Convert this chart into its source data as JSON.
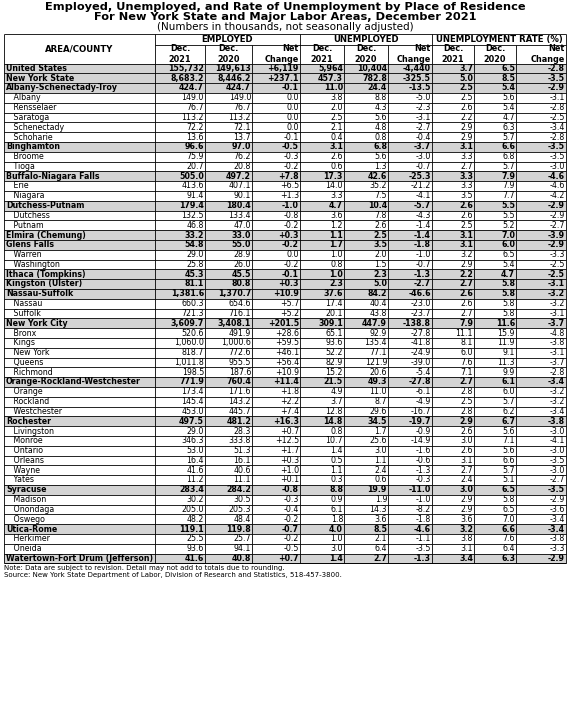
{
  "title_line1": "Employed, Unemployed, and Rate of Unemployment by Place of Residence",
  "title_line2": "For New York State and Major Labor Areas, December 2021",
  "title_line3": "(Numbers in thousands, not seasonally adjusted)",
  "note_line1": "Note: Data are subject to revision. Detail may not add to totals due to rounding.",
  "note_line2": "Source: New York State Department of Labor, Division of Research and Statistics, 518-457-3800.",
  "rows": [
    [
      "United States",
      "155,732",
      "149,613",
      "+6,119",
      "5,964",
      "10,404",
      "-4,440",
      "3.7",
      "6.5",
      "-2.8"
    ],
    [
      "New York State",
      "8,683.2",
      "8,446.2",
      "+237.1",
      "457.3",
      "782.8",
      "-325.5",
      "5.0",
      "8.5",
      "-3.5"
    ],
    [
      "Albany-Schenectady-Troy",
      "424.7",
      "424.7",
      "-0.1",
      "11.0",
      "24.4",
      "-13.5",
      "2.5",
      "5.4",
      "-2.9"
    ],
    [
      "   Albany",
      "149.0",
      "149.0",
      "0.0",
      "3.8",
      "8.8",
      "-5.0",
      "2.5",
      "5.6",
      "-3.1"
    ],
    [
      "   Rensselaer",
      "76.7",
      "76.7",
      "0.0",
      "2.0",
      "4.3",
      "-2.3",
      "2.6",
      "5.4",
      "-2.8"
    ],
    [
      "   Saratoga",
      "113.2",
      "113.2",
      "0.0",
      "2.5",
      "5.6",
      "-3.1",
      "2.2",
      "4.7",
      "-2.5"
    ],
    [
      "   Schenectady",
      "72.2",
      "72.1",
      "0.0",
      "2.1",
      "4.8",
      "-2.7",
      "2.9",
      "6.3",
      "-3.4"
    ],
    [
      "   Schoharie",
      "13.6",
      "13.7",
      "-0.1",
      "0.4",
      "0.8",
      "-0.4",
      "2.9",
      "5.7",
      "-2.8"
    ],
    [
      "Binghamton",
      "96.6",
      "97.0",
      "-0.5",
      "3.1",
      "6.8",
      "-3.7",
      "3.1",
      "6.6",
      "-3.5"
    ],
    [
      "   Broome",
      "75.9",
      "76.2",
      "-0.3",
      "2.6",
      "5.6",
      "-3.0",
      "3.3",
      "6.8",
      "-3.5"
    ],
    [
      "   Tioga",
      "20.7",
      "20.8",
      "-0.2",
      "0.6",
      "1.3",
      "-0.7",
      "2.7",
      "5.7",
      "-3.0"
    ],
    [
      "Buffalo-Niagara Falls",
      "505.0",
      "497.2",
      "+7.8",
      "17.3",
      "42.6",
      "-25.3",
      "3.3",
      "7.9",
      "-4.6"
    ],
    [
      "   Erie",
      "413.6",
      "407.1",
      "+6.5",
      "14.0",
      "35.2",
      "-21.2",
      "3.3",
      "7.9",
      "-4.6"
    ],
    [
      "   Niagara",
      "91.4",
      "90.1",
      "+1.3",
      "3.3",
      "7.5",
      "-4.1",
      "3.5",
      "7.7",
      "-4.2"
    ],
    [
      "Dutchess-Putnam",
      "179.4",
      "180.4",
      "-1.0",
      "4.7",
      "10.4",
      "-5.7",
      "2.6",
      "5.5",
      "-2.9"
    ],
    [
      "   Dutchess",
      "132.5",
      "133.4",
      "-0.8",
      "3.6",
      "7.8",
      "-4.3",
      "2.6",
      "5.5",
      "-2.9"
    ],
    [
      "   Putnam",
      "46.8",
      "47.0",
      "-0.2",
      "1.2",
      "2.6",
      "-1.4",
      "2.5",
      "5.2",
      "-2.7"
    ],
    [
      "Elmira (Chemung)",
      "33.2",
      "33.0",
      "+0.3",
      "1.1",
      "2.5",
      "-1.4",
      "3.1",
      "7.0",
      "-3.9"
    ],
    [
      "Glens Falls",
      "54.8",
      "55.0",
      "-0.2",
      "1.7",
      "3.5",
      "-1.8",
      "3.1",
      "6.0",
      "-2.9"
    ],
    [
      "   Warren",
      "29.0",
      "28.9",
      "0.0",
      "1.0",
      "2.0",
      "-1.0",
      "3.2",
      "6.5",
      "-3.3"
    ],
    [
      "   Washington",
      "25.8",
      "26.0",
      "-0.2",
      "0.8",
      "1.5",
      "-0.7",
      "2.9",
      "5.4",
      "-2.5"
    ],
    [
      "Ithaca (Tompkins)",
      "45.3",
      "45.5",
      "-0.1",
      "1.0",
      "2.3",
      "-1.3",
      "2.2",
      "4.7",
      "-2.5"
    ],
    [
      "Kingston (Ulster)",
      "81.1",
      "80.8",
      "+0.3",
      "2.3",
      "5.0",
      "-2.7",
      "2.7",
      "5.8",
      "-3.1"
    ],
    [
      "Nassau-Suffolk",
      "1,381.6",
      "1,370.7",
      "+10.9",
      "37.6",
      "84.2",
      "-46.6",
      "2.6",
      "5.8",
      "-3.2"
    ],
    [
      "   Nassau",
      "660.3",
      "654.6",
      "+5.7",
      "17.4",
      "40.4",
      "-23.0",
      "2.6",
      "5.8",
      "-3.2"
    ],
    [
      "   Suffolk",
      "721.3",
      "716.1",
      "+5.2",
      "20.1",
      "43.8",
      "-23.7",
      "2.7",
      "5.8",
      "-3.1"
    ],
    [
      "New York City",
      "3,609.7",
      "3,408.1",
      "+201.5",
      "309.1",
      "447.9",
      "-138.8",
      "7.9",
      "11.6",
      "-3.7"
    ],
    [
      "   Bronx",
      "520.6",
      "491.9",
      "+28.6",
      "65.1",
      "92.9",
      "-27.8",
      "11.1",
      "15.9",
      "-4.8"
    ],
    [
      "   Kings",
      "1,060.0",
      "1,000.6",
      "+59.5",
      "93.6",
      "135.4",
      "-41.8",
      "8.1",
      "11.9",
      "-3.8"
    ],
    [
      "   New York",
      "818.7",
      "772.6",
      "+46.1",
      "52.2",
      "77.1",
      "-24.9",
      "6.0",
      "9.1",
      "-3.1"
    ],
    [
      "   Queens",
      "1,011.8",
      "955.5",
      "+56.4",
      "82.9",
      "121.9",
      "-39.0",
      "7.6",
      "11.3",
      "-3.7"
    ],
    [
      "   Richmond",
      "198.5",
      "187.6",
      "+10.9",
      "15.2",
      "20.6",
      "-5.4",
      "7.1",
      "9.9",
      "-2.8"
    ],
    [
      "Orange-Rockland-Westchester",
      "771.9",
      "760.4",
      "+11.4",
      "21.5",
      "49.3",
      "-27.8",
      "2.7",
      "6.1",
      "-3.4"
    ],
    [
      "   Orange",
      "173.4",
      "171.6",
      "+1.8",
      "4.9",
      "11.0",
      "-6.1",
      "2.8",
      "6.0",
      "-3.2"
    ],
    [
      "   Rockland",
      "145.4",
      "143.2",
      "+2.2",
      "3.7",
      "8.7",
      "-4.9",
      "2.5",
      "5.7",
      "-3.2"
    ],
    [
      "   Westchester",
      "453.0",
      "445.7",
      "+7.4",
      "12.8",
      "29.6",
      "-16.7",
      "2.8",
      "6.2",
      "-3.4"
    ],
    [
      "Rochester",
      "497.5",
      "481.2",
      "+16.3",
      "14.8",
      "34.5",
      "-19.7",
      "2.9",
      "6.7",
      "-3.8"
    ],
    [
      "   Livingston",
      "29.0",
      "28.3",
      "+0.7",
      "0.8",
      "1.7",
      "-0.9",
      "2.6",
      "5.6",
      "-3.0"
    ],
    [
      "   Monroe",
      "346.3",
      "333.8",
      "+12.5",
      "10.7",
      "25.6",
      "-14.9",
      "3.0",
      "7.1",
      "-4.1"
    ],
    [
      "   Ontario",
      "53.0",
      "51.3",
      "+1.7",
      "1.4",
      "3.0",
      "-1.6",
      "2.6",
      "5.6",
      "-3.0"
    ],
    [
      "   Orleans",
      "16.4",
      "16.1",
      "+0.3",
      "0.5",
      "1.1",
      "-0.6",
      "3.1",
      "6.6",
      "-3.5"
    ],
    [
      "   Wayne",
      "41.6",
      "40.6",
      "+1.0",
      "1.1",
      "2.4",
      "-1.3",
      "2.7",
      "5.7",
      "-3.0"
    ],
    [
      "   Yates",
      "11.2",
      "11.1",
      "+0.1",
      "0.3",
      "0.6",
      "-0.3",
      "2.4",
      "5.1",
      "-2.7"
    ],
    [
      "Syracuse",
      "283.4",
      "284.2",
      "-0.8",
      "8.8",
      "19.9",
      "-11.0",
      "3.0",
      "6.5",
      "-3.5"
    ],
    [
      "   Madison",
      "30.2",
      "30.5",
      "-0.3",
      "0.9",
      "1.9",
      "-1.0",
      "2.9",
      "5.8",
      "-2.9"
    ],
    [
      "   Onondaga",
      "205.0",
      "205.3",
      "-0.4",
      "6.1",
      "14.3",
      "-8.2",
      "2.9",
      "6.5",
      "-3.6"
    ],
    [
      "   Oswego",
      "48.2",
      "48.4",
      "-0.2",
      "1.8",
      "3.6",
      "-1.8",
      "3.6",
      "7.0",
      "-3.4"
    ],
    [
      "Utica-Rome",
      "119.1",
      "119.8",
      "-0.7",
      "4.0",
      "8.5",
      "-4.6",
      "3.2",
      "6.6",
      "-3.4"
    ],
    [
      "   Herkimer",
      "25.5",
      "25.7",
      "-0.2",
      "1.0",
      "2.1",
      "-1.1",
      "3.8",
      "7.6",
      "-3.8"
    ],
    [
      "   Oneida",
      "93.6",
      "94.1",
      "-0.5",
      "3.0",
      "6.4",
      "-3.5",
      "3.1",
      "6.4",
      "-3.3"
    ],
    [
      "Watertown-Fort Drum (Jefferson)",
      "41.6",
      "40.8",
      "+0.7",
      "1.4",
      "2.7",
      "-1.3",
      "3.4",
      "6.3",
      "-2.9"
    ]
  ],
  "bold_rows": [
    0,
    1,
    2,
    8,
    11,
    14,
    17,
    18,
    21,
    22,
    23,
    26,
    32,
    36,
    43,
    47,
    50
  ],
  "shaded_rows": [
    0,
    1,
    2,
    8,
    11,
    14,
    17,
    18,
    21,
    22,
    23,
    26,
    32,
    36,
    43,
    47,
    50
  ],
  "shade_color": "#d4d4d4",
  "title_fontsize": 8.2,
  "subtitle_fontsize": 7.5,
  "header_fontsize": 6.2,
  "data_fontsize": 5.7,
  "note_fontsize": 5.0
}
